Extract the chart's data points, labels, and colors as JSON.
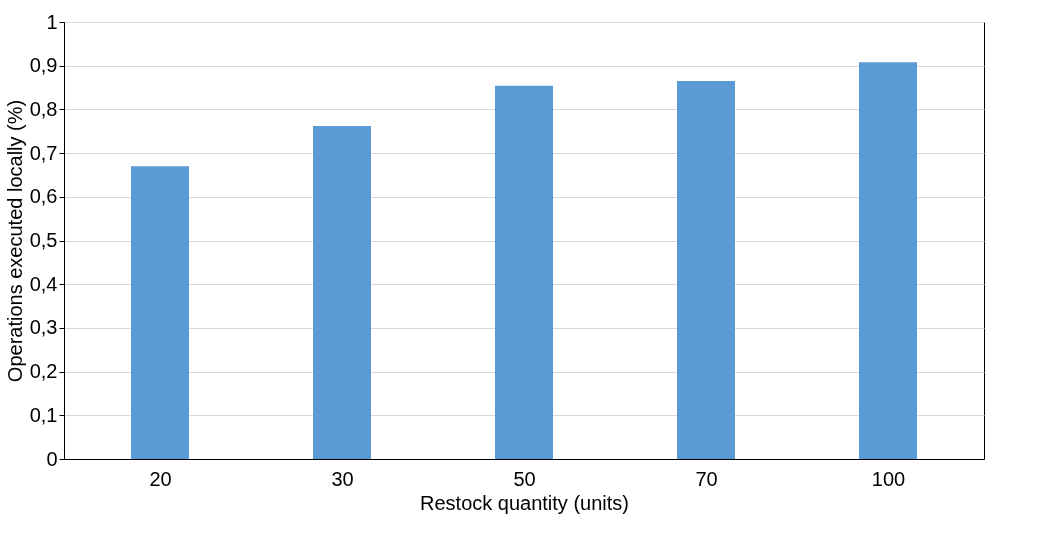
{
  "chart_data": {
    "type": "bar",
    "xlabel": "Restock quantity (units)",
    "ylabel": "Operations executed locally (%)",
    "categories": [
      "20",
      "30",
      "50",
      "70",
      "100"
    ],
    "values": [
      0.67,
      0.762,
      0.854,
      0.865,
      0.908
    ],
    "color": "#5b9bd5",
    "ylim": [
      0,
      1
    ],
    "yticks": [
      0,
      {
        "value": 0.1,
        "label": "0,1"
      },
      {
        "value": 0.2,
        "label": "0,2"
      },
      {
        "value": 0.3,
        "label": "0,3"
      },
      {
        "value": 0.4,
        "label": "0,4"
      },
      {
        "value": 0.5,
        "label": "0,5"
      },
      {
        "value": 0.6,
        "label": "0,6"
      },
      {
        "value": 0.7,
        "label": "0,7"
      },
      {
        "value": 0.8,
        "label": "0,8"
      },
      {
        "value": 0.9,
        "label": "0,9"
      },
      1
    ],
    "grid": "y"
  }
}
